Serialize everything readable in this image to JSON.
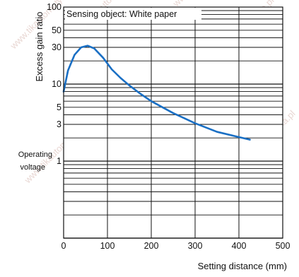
{
  "chart_data": {
    "type": "line",
    "xlabel": "Setting distance (mm)",
    "ylabel": "Excess gain ratio",
    "side_label": [
      "Operating",
      "voltage"
    ],
    "annotation": "Sensing object: White paper",
    "xlim": [
      0,
      500
    ],
    "ylim": [
      0.1,
      100
    ],
    "y_scale": "log",
    "grid": true,
    "x_ticks": [
      0,
      100,
      200,
      300,
      400,
      500
    ],
    "y_ticks": [
      100,
      50,
      30,
      10,
      5,
      3,
      1
    ],
    "series": [
      {
        "color": "#1a6fc4",
        "x": [
          0,
          10,
          25,
          40,
          55,
          70,
          90,
          110,
          130,
          150,
          175,
          200,
          250,
          300,
          350,
          400,
          425
        ],
        "y": [
          8,
          15,
          24,
          30,
          31.5,
          29,
          22,
          15.5,
          12,
          9.6,
          7.5,
          6,
          4.2,
          3.1,
          2.4,
          2.05,
          1.9
        ]
      }
    ],
    "watermark": "www.tikautomatyka.pl"
  }
}
